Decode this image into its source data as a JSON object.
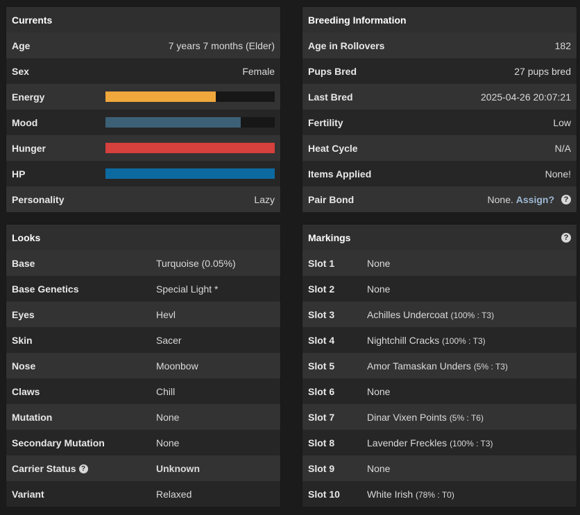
{
  "currents": {
    "title": "Currents",
    "age": {
      "label": "Age",
      "value": "7 years 7 months (Elder)"
    },
    "sex": {
      "label": "Sex",
      "value": "Female"
    },
    "bars": [
      {
        "label": "Energy",
        "percent": 65,
        "color": "#f0a73c"
      },
      {
        "label": "Mood",
        "percent": 80,
        "color": "#3c6076"
      },
      {
        "label": "Hunger",
        "percent": 100,
        "color": "#d6403d"
      },
      {
        "label": "HP",
        "percent": 100,
        "color": "#0d6aa0"
      }
    ],
    "personality": {
      "label": "Personality",
      "value": "Lazy"
    }
  },
  "breeding": {
    "title": "Breeding Information",
    "rows": [
      {
        "label": "Age in Rollovers",
        "value": "182"
      },
      {
        "label": "Pups Bred",
        "value": "27 pups bred"
      },
      {
        "label": "Last Bred",
        "value": "2025-04-26 20:07:21"
      },
      {
        "label": "Fertility",
        "value": "Low"
      },
      {
        "label": "Heat Cycle",
        "value": "N/A"
      },
      {
        "label": "Items Applied",
        "value": "None!"
      }
    ],
    "pair_bond": {
      "label": "Pair Bond",
      "value": "None.",
      "assign_label": "Assign?"
    }
  },
  "looks": {
    "title": "Looks",
    "rows": [
      {
        "label": "Base",
        "value": "Turquoise (0.05%)"
      },
      {
        "label": "Base Genetics",
        "value": "Special Light *"
      },
      {
        "label": "Eyes",
        "value": "Hevl"
      },
      {
        "label": "Skin",
        "value": "Sacer"
      },
      {
        "label": "Nose",
        "value": "Moonbow"
      },
      {
        "label": "Claws",
        "value": "Chill"
      },
      {
        "label": "Mutation",
        "value": "None"
      },
      {
        "label": "Secondary Mutation",
        "value": "None"
      }
    ],
    "carrier": {
      "label": "Carrier Status",
      "value": "Unknown"
    },
    "variant": {
      "label": "Variant",
      "value": "Relaxed"
    }
  },
  "markings": {
    "title": "Markings",
    "slots": [
      {
        "label": "Slot 1",
        "name": "None",
        "detail": ""
      },
      {
        "label": "Slot 2",
        "name": "None",
        "detail": ""
      },
      {
        "label": "Slot 3",
        "name": "Achilles Undercoat",
        "detail": "(100% : T3)"
      },
      {
        "label": "Slot 4",
        "name": "Nightchill Cracks",
        "detail": "(100% : T3)"
      },
      {
        "label": "Slot 5",
        "name": "Amor Tamaskan Unders",
        "detail": "(5% : T3)"
      },
      {
        "label": "Slot 6",
        "name": "None",
        "detail": ""
      },
      {
        "label": "Slot 7",
        "name": "Dinar Vixen Points",
        "detail": "(5% : T6)"
      },
      {
        "label": "Slot 8",
        "name": "Lavender Freckles",
        "detail": "(100% : T3)"
      },
      {
        "label": "Slot 9",
        "name": "None",
        "detail": ""
      },
      {
        "label": "Slot 10",
        "name": "White Irish",
        "detail": "(78% : T0)"
      }
    ]
  },
  "icons": {
    "help": "question-circle-icon"
  }
}
